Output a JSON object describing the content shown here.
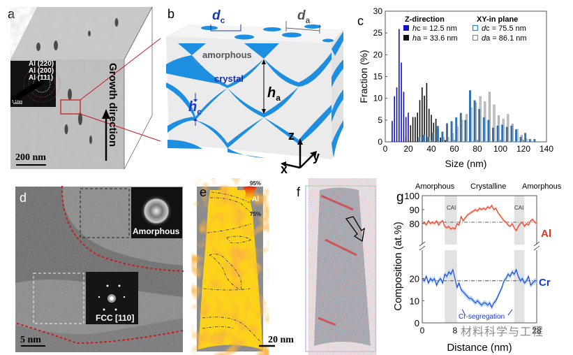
{
  "panels": {
    "a": {
      "label": "a",
      "diffraction_rings": [
        "Al (220)",
        "Al (200)",
        "Al (111)"
      ],
      "diffraction_scale": "5 1/nm",
      "scale_bar": "200 nm",
      "growth_label": "Growth direction"
    },
    "b": {
      "label": "b",
      "dc_symbol": "d",
      "dc_sub": "c",
      "da_symbol": "d",
      "da_sub": "a",
      "amorphous_label": "amorphous",
      "crystal_label": "crystal",
      "ha_symbol": "h",
      "ha_sub": "a",
      "hc_symbol": "h",
      "hc_sub": "c",
      "axis_z": "z",
      "axis_y": "y",
      "axis_x": "x",
      "colors": {
        "blue": "#1e8ee0",
        "cube_face": "#ececec"
      }
    },
    "c": {
      "label": "c"
    },
    "d": {
      "label": "d",
      "inset_amorphous": "Amorphous",
      "inset_fcc": "FCC [110]",
      "scale_bar": "5 nm"
    },
    "e": {
      "label": "e",
      "colorbar_top": "95%",
      "colorbar_mid": "Al",
      "colorbar_bottom": "75%",
      "scale_bar": "20 nm"
    },
    "f": {
      "label": "f"
    },
    "g": {
      "label": "g",
      "region_labels": [
        "Amorphous",
        "Crystalline",
        "Amorphous"
      ],
      "cai_labels": [
        "CAI",
        "CAI"
      ],
      "series_labels": [
        "Al",
        "Cr"
      ],
      "annotation": "Cr-segregation",
      "watermark": "材料科学与工程"
    }
  },
  "chart_data": [
    {
      "panel": "c",
      "type": "bar",
      "title": "",
      "xlabel": "Size (nm)",
      "ylabel": "Fraction (%)",
      "xlim": [
        0,
        140
      ],
      "ylim": [
        0,
        30
      ],
      "xticks": [
        0,
        20,
        40,
        60,
        80,
        100,
        120,
        140
      ],
      "yticks": [
        0,
        5,
        10,
        15,
        20,
        25,
        30
      ],
      "legend": {
        "placement": "top",
        "group_titles": [
          "Z-direction",
          "XY-in plane"
        ],
        "entries": [
          {
            "prefix": "h",
            "suffix": "c",
            "text": " = 12.5 nm",
            "color": "#1010c8",
            "style": "filled"
          },
          {
            "prefix": "h",
            "suffix": "a",
            "text": " = 33.6 nm",
            "color": "#111111",
            "style": "filled"
          },
          {
            "prefix": "d",
            "suffix": "c",
            "text": " = 75.5 nm",
            "color": "#2f7fc8",
            "style": "open"
          },
          {
            "prefix": "d",
            "suffix": "a",
            "text": " = 86.1 nm",
            "color": "#888888",
            "style": "open"
          }
        ]
      },
      "series": [
        {
          "name": "hc",
          "color": "#1010c8",
          "x": [
            6,
            8,
            10,
            12,
            14,
            16,
            18,
            20
          ],
          "values": [
            4.8,
            10.5,
            12.5,
            25.9,
            18.2,
            11.5,
            5.7,
            6.7
          ]
        },
        {
          "name": "ha",
          "color": "#111111",
          "x": [
            18,
            20,
            22,
            24,
            26,
            28,
            30,
            32,
            34,
            36,
            38,
            40,
            42,
            44,
            46,
            48,
            50,
            52,
            54
          ],
          "values": [
            1.0,
            0.5,
            3.8,
            5.7,
            5.7,
            6.7,
            9.6,
            12.5,
            10.6,
            13.5,
            7.6,
            6.2,
            4.4,
            5.3,
            2.9,
            1.0,
            0.5,
            0.4,
            0.5
          ]
        },
        {
          "name": "da",
          "color": "#a8a8a8",
          "x": [
            50,
            54,
            58,
            62,
            66,
            70,
            74,
            78,
            82,
            86,
            90,
            94,
            98,
            102,
            106,
            110,
            114,
            118,
            122
          ],
          "values": [
            1.0,
            1.1,
            1.9,
            3.5,
            5.0,
            6.3,
            7.8,
            9.0,
            10.4,
            9.2,
            11.4,
            8.5,
            6.0,
            5.2,
            6.3,
            4.1,
            2.9,
            1.5,
            0.7
          ]
        },
        {
          "name": "dc",
          "color": "#2f7fc8",
          "x": [
            30,
            34,
            38,
            42,
            46,
            50,
            54,
            58,
            62,
            66,
            70,
            74,
            78,
            82,
            86,
            90,
            94,
            98,
            102,
            106,
            110,
            114,
            118,
            122,
            126,
            130
          ],
          "values": [
            1.0,
            1.6,
            1.1,
            2.1,
            3.6,
            2.3,
            4.2,
            4.7,
            5.6,
            6.6,
            5.0,
            11.8,
            9.5,
            7.5,
            5.6,
            5.0,
            3.2,
            3.7,
            3.9,
            3.4,
            3.7,
            2.8,
            1.1,
            2.0,
            0.6,
            0.6
          ]
        }
      ]
    },
    {
      "panel": "g",
      "type": "line",
      "title": "",
      "xlabel": "Distance (nm)",
      "ylabel": "Composition (at.%)",
      "xlim": [
        0,
        28
      ],
      "xticks_visible": [
        0,
        8,
        28
      ],
      "ylim_upper": [
        70,
        100
      ],
      "ylim_lower": [
        0,
        30
      ],
      "yticks": [
        0,
        10,
        20,
        80,
        90,
        100
      ],
      "axis_break": true,
      "shaded_regions": [
        [
          5.5,
          8.5
        ],
        [
          22.5,
          25.0
        ]
      ],
      "reference_lines": [
        {
          "series": "Al",
          "y": 81
        },
        {
          "series": "Cr",
          "y": 19
        }
      ],
      "series": [
        {
          "name": "Al",
          "color": "#e8321e",
          "band_color": "#f7b8a6",
          "x": [
            0,
            0.5,
            1,
            1.5,
            2,
            2.5,
            3,
            3.5,
            4,
            4.5,
            5,
            5.5,
            6,
            6.5,
            7,
            7.5,
            8,
            8.5,
            9,
            9.5,
            10,
            10.5,
            11,
            11.5,
            12,
            12.5,
            13,
            13.5,
            14,
            14.5,
            15,
            15.5,
            16,
            16.5,
            17,
            17.5,
            18,
            18.5,
            19,
            19.5,
            20,
            20.5,
            21,
            21.5,
            22,
            22.5,
            23,
            23.5,
            24,
            24.5,
            25,
            25.5,
            26,
            26.5,
            27,
            27.5,
            28
          ],
          "values": [
            80,
            81,
            79,
            82,
            80,
            81,
            80,
            82,
            79,
            81,
            82,
            78,
            77,
            78,
            76,
            77,
            76,
            80,
            79,
            85,
            82,
            84,
            86,
            87,
            88,
            89,
            90,
            89,
            91,
            90,
            91,
            90,
            92,
            91,
            93,
            90,
            91,
            88,
            86,
            84,
            82,
            81,
            79,
            78,
            80,
            77,
            75,
            78,
            80,
            81,
            78,
            80,
            79,
            82,
            83,
            81,
            80
          ]
        },
        {
          "name": "Cr",
          "color": "#1538d0",
          "band_color": "#9cc8f0",
          "x": [
            0,
            0.5,
            1,
            1.5,
            2,
            2.5,
            3,
            3.5,
            4,
            4.5,
            5,
            5.5,
            6,
            6.5,
            7,
            7.5,
            8,
            8.5,
            9,
            9.5,
            10,
            10.5,
            11,
            11.5,
            12,
            12.5,
            13,
            13.5,
            14,
            14.5,
            15,
            15.5,
            16,
            16.5,
            17,
            17.5,
            18,
            18.5,
            19,
            19.5,
            20,
            20.5,
            21,
            21.5,
            22,
            22.5,
            23,
            23.5,
            24,
            24.5,
            25,
            25.5,
            26,
            26.5,
            27,
            27.5,
            28
          ],
          "values": [
            20,
            19,
            21,
            18,
            20,
            19,
            20,
            17,
            19,
            20,
            18,
            22,
            21,
            23,
            22,
            24,
            20,
            16,
            18,
            15,
            14,
            13,
            12,
            11,
            11,
            10,
            9,
            10,
            9,
            8,
            9,
            9,
            8,
            9,
            7,
            9,
            10,
            12,
            14,
            16,
            19,
            20,
            22,
            21,
            23,
            22,
            24,
            21,
            19,
            20,
            18,
            19,
            21,
            17,
            18,
            19,
            19
          ]
        }
      ]
    }
  ]
}
